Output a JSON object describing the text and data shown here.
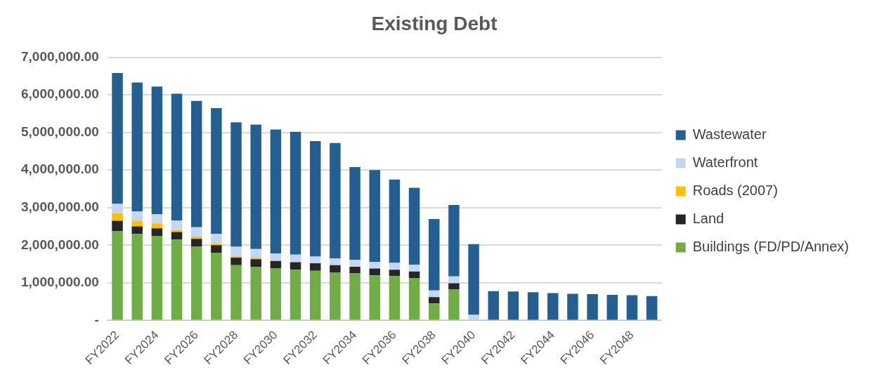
{
  "chart_data": {
    "type": "bar",
    "title": "Existing Debt",
    "stacked": true,
    "grid": "y",
    "legend": "right",
    "categories": [
      "FY2022",
      null,
      "FY2024",
      null,
      "FY2026",
      null,
      "FY2028",
      null,
      "FY2030",
      null,
      "FY2032",
      null,
      "FY2034",
      null,
      "FY2036",
      null,
      "FY2038",
      null,
      "FY2040",
      null,
      "FY2042",
      null,
      "FY2044",
      null,
      "FY2046",
      null,
      "FY2048",
      null
    ],
    "ylim": [
      0,
      7000000
    ],
    "yticks": [
      {
        "value": 0,
        "label": "-"
      },
      {
        "value": 1000000,
        "label": "1,000,000.00"
      },
      {
        "value": 2000000,
        "label": "2,000,000.00"
      },
      {
        "value": 3000000,
        "label": "3,000,000.00"
      },
      {
        "value": 4000000,
        "label": "4,000,000.00"
      },
      {
        "value": 5000000,
        "label": "5,000,000.00"
      },
      {
        "value": 6000000,
        "label": "6,000,000.00"
      },
      {
        "value": 7000000,
        "label": "7,000,000.00"
      }
    ],
    "series": [
      {
        "name": "Buildings (FD/PD/Annex)",
        "color": "#70ad47",
        "values": [
          2370000,
          2300000,
          2250000,
          2150000,
          1970000,
          1800000,
          1470000,
          1430000,
          1380000,
          1350000,
          1320000,
          1270000,
          1250000,
          1200000,
          1180000,
          1130000,
          450000,
          820000,
          0,
          0,
          0,
          0,
          0,
          0,
          0,
          0,
          0,
          0
        ]
      },
      {
        "name": "Land",
        "color": "#262626",
        "values": [
          280000,
          200000,
          200000,
          200000,
          200000,
          200000,
          200000,
          200000,
          200000,
          200000,
          200000,
          200000,
          180000,
          180000,
          170000,
          170000,
          170000,
          170000,
          0,
          0,
          0,
          0,
          0,
          0,
          0,
          0,
          0,
          0
        ]
      },
      {
        "name": "Roads (2007)",
        "color": "#ffc000",
        "values": [
          200000,
          150000,
          130000,
          60000,
          60000,
          50000,
          40000,
          40000,
          0,
          0,
          0,
          0,
          0,
          0,
          0,
          0,
          0,
          0,
          0,
          0,
          0,
          0,
          0,
          0,
          0,
          0,
          0,
          0
        ]
      },
      {
        "name": "Waterfront",
        "color": "#c5d6f0",
        "values": [
          250000,
          250000,
          250000,
          250000,
          250000,
          250000,
          250000,
          230000,
          200000,
          200000,
          180000,
          180000,
          180000,
          180000,
          180000,
          180000,
          180000,
          180000,
          150000,
          0,
          0,
          0,
          0,
          0,
          0,
          0,
          0,
          0
        ]
      },
      {
        "name": "Wastewater",
        "color": "#255e91",
        "values": [
          3480000,
          3430000,
          3390000,
          3370000,
          3360000,
          3350000,
          3310000,
          3310000,
          3300000,
          3270000,
          3070000,
          3070000,
          2470000,
          2440000,
          2220000,
          2050000,
          1900000,
          1900000,
          1880000,
          780000,
          770000,
          750000,
          730000,
          710000,
          700000,
          680000,
          670000,
          650000
        ]
      }
    ]
  }
}
